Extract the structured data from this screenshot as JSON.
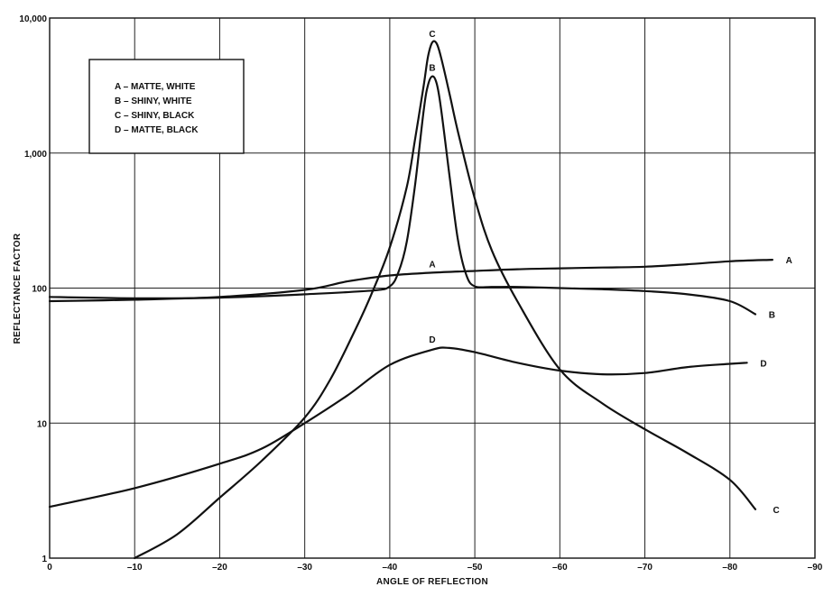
{
  "chart_data": {
    "type": "line",
    "title": "",
    "xlabel": "ANGLE OF REFLECTION",
    "ylabel": "REFLECTANCE FACTOR",
    "xlim": [
      0,
      -90
    ],
    "ylim": [
      1,
      10000
    ],
    "yscale": "log",
    "grid": true,
    "legend_position": "top-left",
    "x_ticks": [
      0,
      -10,
      -20,
      -30,
      -40,
      -50,
      -60,
      -70,
      -80,
      -90
    ],
    "x_tick_labels": [
      "0",
      "–10",
      "–20",
      "–30",
      "–40",
      "–50",
      "–60",
      "–70",
      "–80",
      "–90"
    ],
    "y_ticks": [
      1,
      10,
      100,
      1000,
      10000
    ],
    "y_tick_labels": [
      "1",
      "10",
      "100",
      "1,000",
      "10,000"
    ],
    "legend_entries": [
      "A – MATTE, WHITE",
      "B – SHINY, WHITE",
      "C – SHINY, BLACK",
      "D – MATTE, BLACK"
    ],
    "series": [
      {
        "name": "A",
        "x": [
          0,
          -10,
          -20,
          -30,
          -35,
          -40,
          -45,
          -50,
          -55,
          -60,
          -65,
          -70,
          -75,
          -80,
          -85
        ],
        "y": [
          80,
          82,
          86,
          97,
          112,
          124,
          130,
          134,
          138,
          140,
          142,
          144,
          150,
          158,
          162
        ]
      },
      {
        "name": "B",
        "x": [
          0,
          -10,
          -20,
          -30,
          -38,
          -40,
          -41,
          -42,
          -43,
          -44,
          -44.5,
          -45,
          -45.5,
          -46,
          -47,
          -48,
          -49,
          -50,
          -52,
          -55,
          -60,
          -65,
          -70,
          -75,
          -80,
          -83
        ],
        "y": [
          86,
          84,
          85,
          90,
          96,
          103,
          130,
          220,
          600,
          2100,
          3200,
          3700,
          3300,
          2200,
          700,
          230,
          125,
          103,
          102,
          102,
          100,
          98,
          95,
          90,
          80,
          64
        ]
      },
      {
        "name": "C",
        "x": [
          -10,
          -15,
          -20,
          -25,
          -30,
          -33,
          -36,
          -38,
          -40,
          -42,
          -43,
          -44,
          -44.5,
          -45,
          -45.5,
          -46,
          -47,
          -48,
          -50,
          -52,
          -55,
          -60,
          -65,
          -70,
          -75,
          -80,
          -83
        ],
        "y": [
          1,
          1.5,
          2.8,
          5.3,
          11,
          21,
          50,
          95,
          200,
          560,
          1300,
          3200,
          5200,
          6600,
          6500,
          5200,
          2800,
          1450,
          460,
          190,
          80,
          25,
          14,
          9,
          6,
          3.8,
          2.3
        ]
      },
      {
        "name": "D",
        "x": [
          0,
          -10,
          -20,
          -25,
          -30,
          -35,
          -40,
          -45,
          -47,
          -50,
          -55,
          -60,
          -65,
          -70,
          -75,
          -80,
          -82
        ],
        "y": [
          2.4,
          3.3,
          5,
          6.5,
          10,
          16,
          27,
          35,
          36,
          33.5,
          28,
          24.5,
          23,
          23.5,
          26,
          27.5,
          28
        ]
      }
    ],
    "curve_labels": [
      {
        "series": "A",
        "text": "A",
        "x": -85.5,
        "y": 162
      },
      {
        "series": "B",
        "text": "B",
        "x": -83.5,
        "y": 64
      },
      {
        "series": "C",
        "text": "C",
        "x": -84,
        "y": 2.3
      },
      {
        "series": "D",
        "text": "D",
        "x": -82.5,
        "y": 28
      },
      {
        "series": "A",
        "text": "A",
        "x": -45,
        "y": 130
      },
      {
        "series": "B",
        "text": "B",
        "x": -45,
        "y": 3700
      },
      {
        "series": "C",
        "text": "C",
        "x": -45,
        "y": 6600
      },
      {
        "series": "D",
        "text": "D",
        "x": -45,
        "y": 36
      }
    ]
  }
}
